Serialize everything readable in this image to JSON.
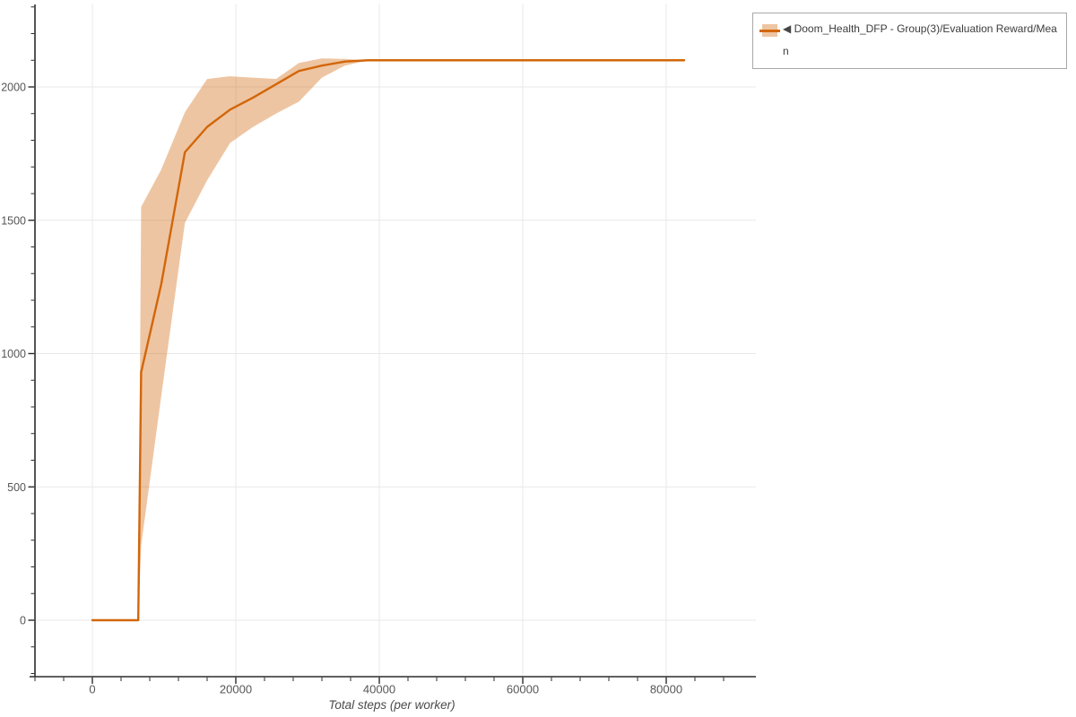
{
  "page": {
    "background": "#ffffff"
  },
  "legend": {
    "collapse_icon": "◀",
    "border_color": "#a8a8a8"
  },
  "chart_data": {
    "type": "line",
    "title": "",
    "xlabel": "Total steps (per worker)",
    "ylabel": "",
    "xlim": [
      -8750,
      92500
    ],
    "ylim": [
      -212,
      2310
    ],
    "grid": true,
    "legend_position": "top-right",
    "x_ticks": [
      0,
      20000,
      40000,
      60000,
      80000
    ],
    "x_tick_labels": [
      "0",
      "20000",
      "40000",
      "60000",
      "80000"
    ],
    "x_minor_tick_step": 4000,
    "x_minor_range": [
      -8000,
      88000
    ],
    "y_ticks": [
      0,
      500,
      1000,
      1500,
      2000
    ],
    "y_tick_labels": [
      "0",
      "500",
      "1000",
      "1500",
      "2000"
    ],
    "y_minor_tick_step": 100,
    "y_minor_range": [
      -200,
      2300
    ],
    "colors": {
      "line": "#d2660a",
      "band": "rgba(210, 102, 10, 0.38)",
      "grid": "#e8e8e8",
      "axis": "#2b2b2b",
      "tick_label": "#565656",
      "axis_label": "#4a4a4a"
    },
    "series": [
      {
        "name": "Doom_Health_DFP - Group(3)/Evaluation Reward/Mean",
        "x": [
          0,
          3200,
          6400,
          6800,
          9600,
          12900,
          16000,
          19200,
          22400,
          25600,
          28800,
          32000,
          35200,
          38400,
          45000,
          55000,
          65000,
          75000,
          82500
        ],
        "mean": [
          0,
          0,
          0,
          930,
          1260,
          1755,
          1850,
          1915,
          1960,
          2010,
          2060,
          2080,
          2095,
          2100,
          2100,
          2100,
          2100,
          2100,
          2100
        ],
        "lower": [
          0,
          0,
          0,
          280,
          840,
          1490,
          1650,
          1790,
          1850,
          1900,
          1945,
          2035,
          2080,
          2100,
          2100,
          2100,
          2100,
          2100,
          2100
        ],
        "upper": [
          0,
          0,
          0,
          1550,
          1690,
          1905,
          2030,
          2040,
          2035,
          2030,
          2090,
          2107,
          2105,
          2100,
          2100,
          2100,
          2100,
          2100,
          2100
        ]
      }
    ]
  }
}
